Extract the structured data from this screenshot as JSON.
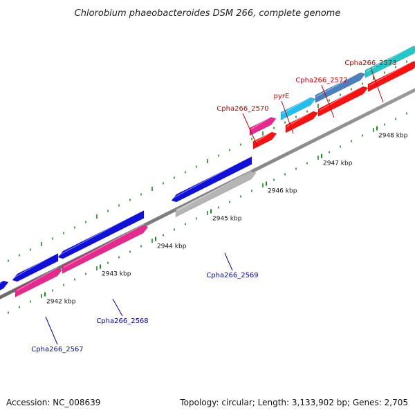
{
  "title": "Chlorobium phaeobacteroides DSM 266, complete genome",
  "footer": {
    "accession": "Accession: NC_008639",
    "summary": "Topology: circular; Length: 3,133,902 bp; Genes: 2,705"
  },
  "colors": {
    "backbone": "#8a8a8a",
    "tick": "#1a8a1a",
    "label_reverse": "#cc0000",
    "label_forward": "#0000aa"
  },
  "ticks": [
    {
      "label": "2942 kbp"
    },
    {
      "label": "2943 kbp"
    },
    {
      "label": "2944 kbp"
    },
    {
      "label": "2945 kbp"
    },
    {
      "label": "2946 kbp"
    },
    {
      "label": "2947 kbp"
    },
    {
      "label": "2948 kbp"
    }
  ],
  "genes": [
    {
      "name": "Cpha266_2567",
      "color": "#e8288c",
      "strand": "forward"
    },
    {
      "name": "Cpha266_2568",
      "color": "#e8288c",
      "strand": "forward"
    },
    {
      "name": "Cpha266_2569",
      "color": "#b5b5b5",
      "strand": "forward"
    },
    {
      "name": "Cpha266_2570",
      "color": "#e8288c",
      "strand": "reverse"
    },
    {
      "name": "pyrE",
      "color": "#22c0f0",
      "strand": "reverse"
    },
    {
      "name": "Cpha266_2572",
      "color": "#4a7fc0",
      "strand": "reverse"
    },
    {
      "name": "Cpha266_2573",
      "color": "#20c8c8",
      "strand": "reverse"
    }
  ]
}
